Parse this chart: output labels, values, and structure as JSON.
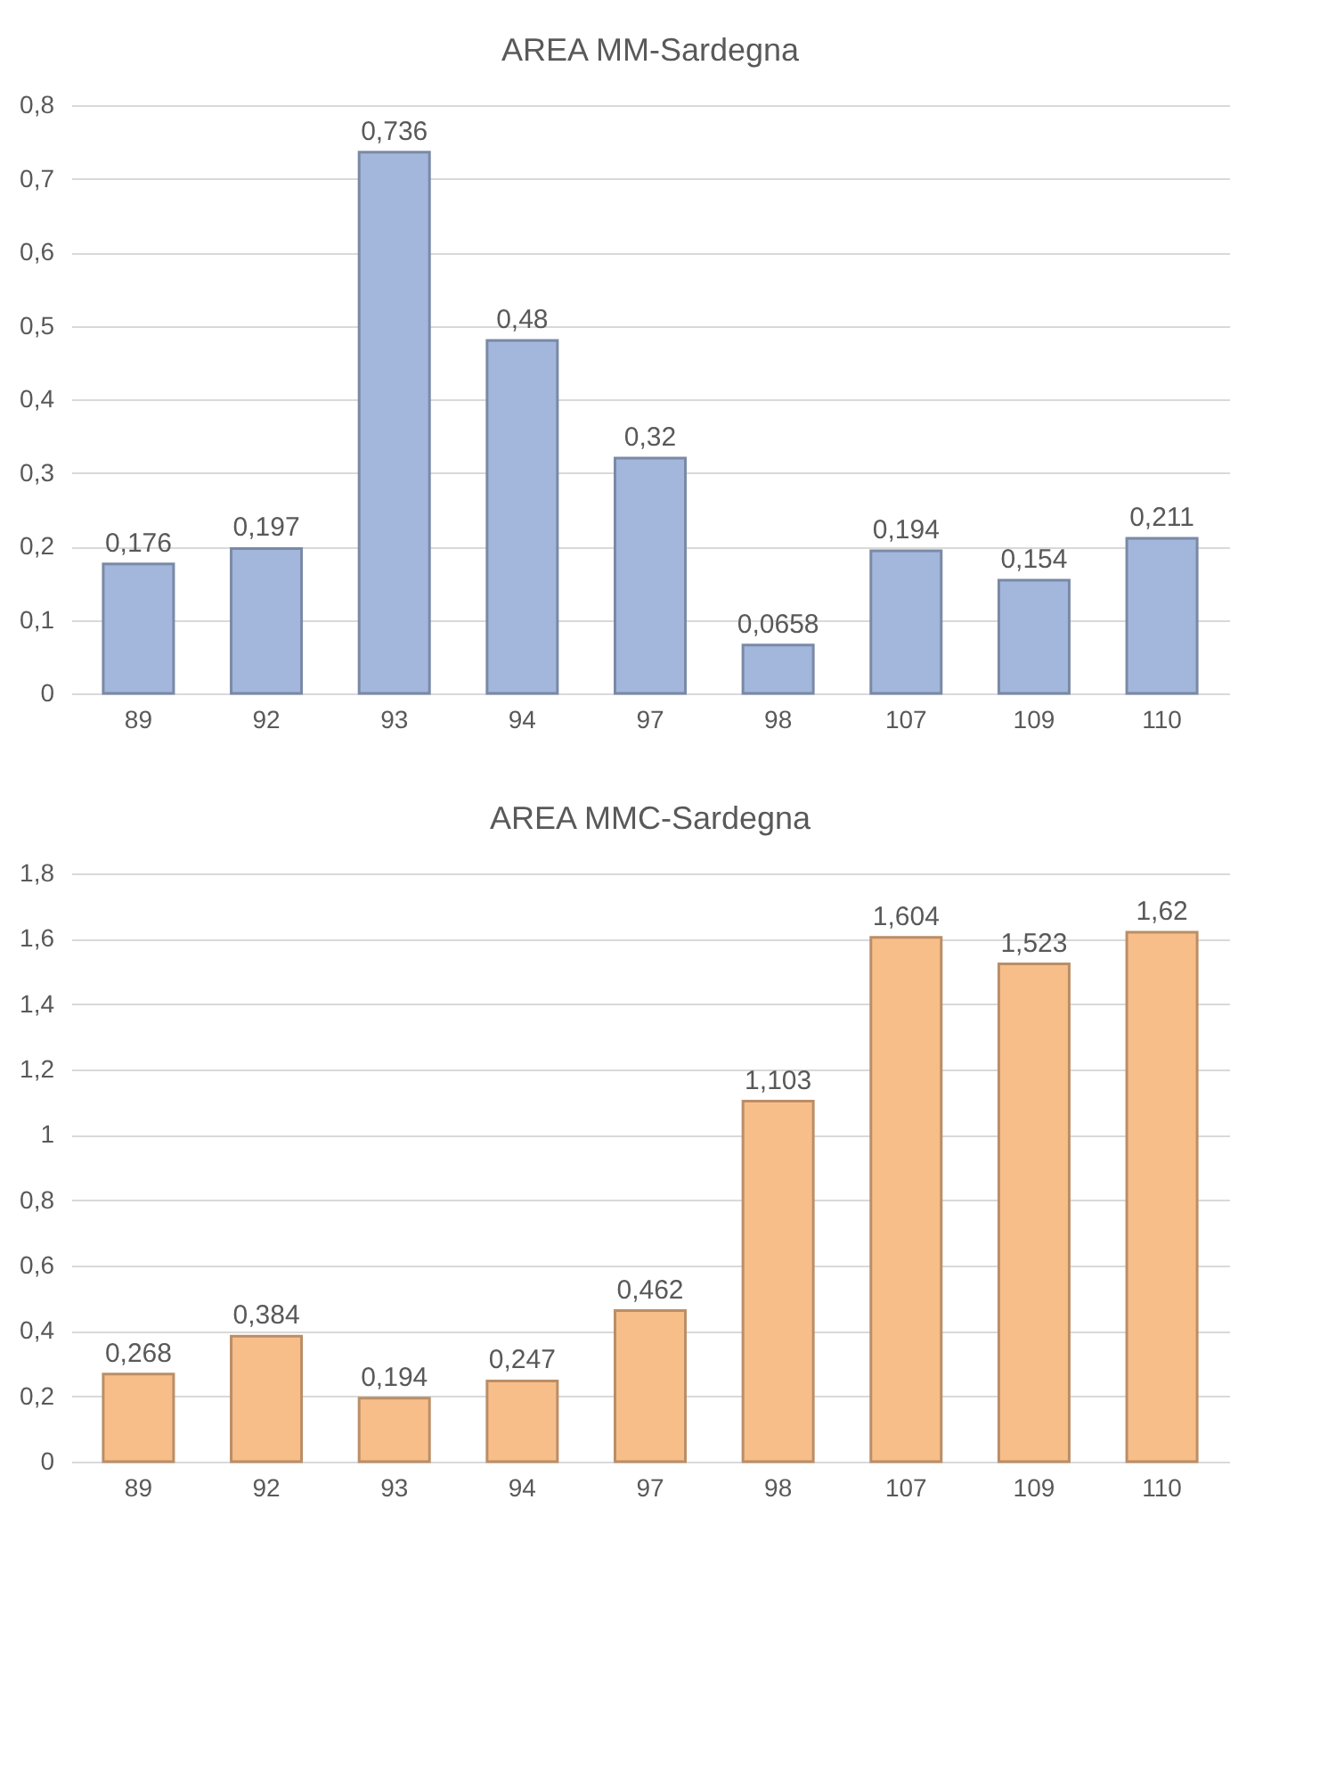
{
  "chart_data": [
    {
      "type": "bar",
      "title": "AREA MM-Sardegna",
      "categories": [
        "89",
        "92",
        "93",
        "94",
        "97",
        "98",
        "107",
        "109",
        "110"
      ],
      "series": [
        {
          "color": "#a3b7dc",
          "values": [
            0.176,
            0.197,
            0.736,
            0.48,
            0.32,
            0.0658,
            0.194,
            0.154,
            0.211
          ],
          "value_labels": [
            "0,176",
            "0,197",
            "0,736",
            "0,48",
            "0,32",
            "0,0658",
            "0,194",
            "0,154",
            "0,211"
          ]
        }
      ],
      "ylim": [
        0,
        0.8
      ],
      "yticks": [
        0,
        {
          "value": 0.1,
          "label": "0,1"
        },
        {
          "value": 0.2,
          "label": "0,2"
        },
        {
          "value": 0.3,
          "label": "0,3"
        },
        {
          "value": 0.4,
          "label": "0,4"
        },
        {
          "value": 0.5,
          "label": "0,5"
        },
        {
          "value": 0.6,
          "label": "0,6"
        },
        {
          "value": 0.7,
          "label": "0,7"
        },
        {
          "value": 0.8,
          "label": "0,8"
        }
      ],
      "grid": "y"
    },
    {
      "type": "bar",
      "title": "AREA MMC-Sardegna",
      "categories": [
        "89",
        "92",
        "93",
        "94",
        "97",
        "98",
        "107",
        "109",
        "110"
      ],
      "series": [
        {
          "color": "#f8be8a",
          "values": [
            0.268,
            0.384,
            0.194,
            0.247,
            0.462,
            1.103,
            1.604,
            1.523,
            1.62
          ],
          "value_labels": [
            "0,268",
            "0,384",
            "0,194",
            "0,247",
            "0,462",
            "1,103",
            "1,604",
            "1,523",
            "1,62"
          ]
        }
      ],
      "ylim": [
        0,
        1.8
      ],
      "yticks": [
        0,
        {
          "value": 0.2,
          "label": "0,2"
        },
        {
          "value": 0.4,
          "label": "0,4"
        },
        {
          "value": 0.6,
          "label": "0,6"
        },
        {
          "value": 0.8,
          "label": "0,8"
        },
        1,
        {
          "value": 1.2,
          "label": "1,2"
        },
        {
          "value": 1.4,
          "label": "1,4"
        },
        {
          "value": 1.6,
          "label": "1,6"
        },
        {
          "value": 1.8,
          "label": "1,8"
        }
      ],
      "grid": "y"
    }
  ]
}
